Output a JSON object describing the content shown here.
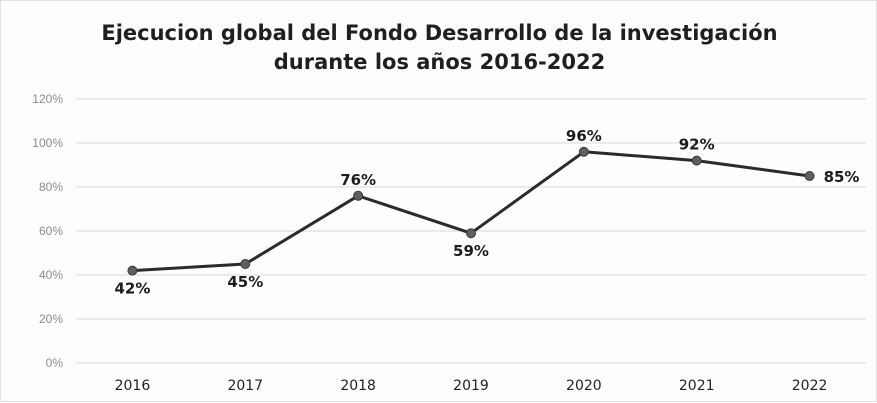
{
  "chart_data": {
    "type": "line",
    "title_line1": "Ejecucion global del Fondo Desarrollo de la investigación",
    "title_line2": "durante los años 2016-2022",
    "categories": [
      "2016",
      "2017",
      "2018",
      "2019",
      "2020",
      "2021",
      "2022"
    ],
    "series": [
      {
        "values": [
          42,
          45,
          76,
          59,
          96,
          92,
          85
        ],
        "labels": [
          "42%",
          "45%",
          "76%",
          "59%",
          "96%",
          "92%",
          "85%"
        ]
      }
    ],
    "label_placement": [
      "below",
      "below",
      "above",
      "below",
      "above",
      "above",
      "right"
    ],
    "y_ticks": [
      0,
      20,
      40,
      60,
      80,
      100,
      120
    ],
    "y_tick_labels": [
      "0%",
      "20%",
      "40%",
      "60%",
      "80%",
      "100%",
      "120%"
    ],
    "ylim": [
      0,
      120
    ],
    "grid": true,
    "legend": "none",
    "colors": {
      "line": "#2b2b2b",
      "marker": "#5f5f5f",
      "grid": "#d6d6d6"
    }
  }
}
